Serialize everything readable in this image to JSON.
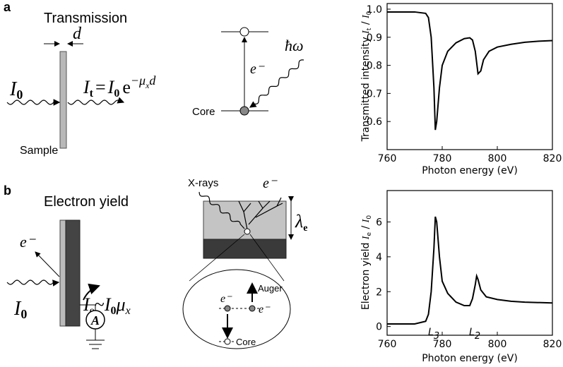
{
  "panel_a": {
    "label": "a",
    "title": "Transmission",
    "thickness": "d",
    "incident": [
      "I",
      "0"
    ],
    "formula": [
      "I",
      "t",
      "=",
      "I",
      "0",
      "e",
      "−μ",
      "x",
      "d"
    ],
    "sample": "Sample",
    "electron": "e⁻",
    "photon": "ħω",
    "core": "Core"
  },
  "panel_b": {
    "label": "b",
    "title": "Electron yield",
    "electron": "e⁻",
    "incident": [
      "I",
      "0"
    ],
    "formula": [
      "I",
      "e",
      "~",
      "I",
      "0",
      "μ",
      "x"
    ],
    "ammeter": "A",
    "xrays": "X-rays",
    "emitted": "e⁻",
    "depth": [
      "λ",
      "e"
    ],
    "auger": "Auger",
    "auger_electron": "e⁻",
    "core_electron": "e⁻",
    "core": "Core"
  },
  "chart_data": [
    {
      "type": "line",
      "xlabel": "Photon energy (eV)",
      "ylabel": [
        "Transmitted intensity ",
        "I",
        "t",
        " / ",
        "I",
        "0"
      ],
      "x": [
        760,
        770,
        774,
        775,
        776,
        777,
        777.5,
        778,
        779,
        780,
        782,
        785,
        788,
        790,
        791,
        792,
        793,
        794,
        795,
        797,
        800,
        805,
        810,
        815,
        820
      ],
      "values": [
        0.99,
        0.99,
        0.985,
        0.97,
        0.9,
        0.72,
        0.57,
        0.6,
        0.72,
        0.8,
        0.85,
        0.88,
        0.895,
        0.898,
        0.89,
        0.85,
        0.77,
        0.78,
        0.82,
        0.85,
        0.865,
        0.875,
        0.882,
        0.886,
        0.888
      ],
      "color": "#000000",
      "xlim": [
        760,
        820
      ],
      "xticks": [
        760,
        780,
        800,
        820
      ],
      "ylim": [
        0.5,
        1.02
      ],
      "yticks": [
        0.6,
        0.7,
        0.8,
        0.9,
        {
          "value": 1,
          "label": "1.0"
        }
      ]
    },
    {
      "type": "line",
      "xlabel": "Photon energy (eV)",
      "ylabel": [
        "Electron yield ",
        "I",
        "e",
        " / ",
        "I",
        "0"
      ],
      "x": [
        760,
        770,
        774,
        775,
        776,
        777,
        777.5,
        778,
        779,
        780,
        782,
        785,
        788,
        790,
        791,
        792,
        792.5,
        793,
        794,
        796,
        800,
        805,
        810,
        820
      ],
      "values": [
        0.15,
        0.15,
        0.3,
        0.7,
        2,
        4.5,
        6.3,
        6,
        4,
        2.6,
        1.9,
        1.4,
        1.2,
        1.2,
        1.6,
        2.4,
        2.9,
        2.7,
        2.1,
        1.7,
        1.55,
        1.45,
        1.4,
        1.35
      ],
      "color": "#000000",
      "xlim": [
        760,
        820
      ],
      "xticks": [
        760,
        780,
        800,
        820
      ],
      "ylim": [
        -0.5,
        7.8
      ],
      "yticks": [
        0,
        2,
        4,
        6
      ],
      "annotations": [
        [
          "L",
          "3"
        ],
        [
          "L",
          "2"
        ]
      ]
    }
  ]
}
